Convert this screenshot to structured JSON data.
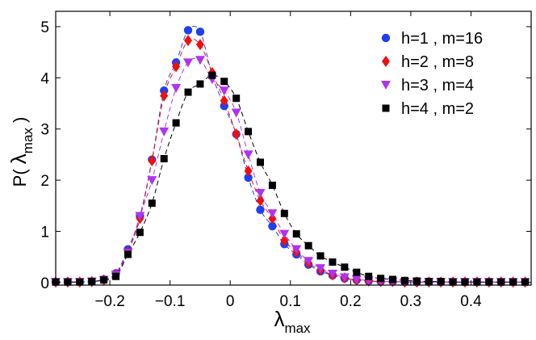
{
  "chart_data": {
    "type": "scatter",
    "title": "",
    "xlabel": {
      "base": "λ",
      "sub": "max"
    },
    "ylabel": {
      "pre": "P( ",
      "base": "λ",
      "sub": "max",
      "post": " )"
    },
    "xlim": [
      -0.29,
      0.5
    ],
    "ylim": [
      -0.05,
      5.3
    ],
    "xticks": [
      -0.2,
      -0.1,
      0,
      0.1,
      0.2,
      0.3,
      0.4
    ],
    "xtick_labels": [
      "−0.2",
      "−0.1",
      "0",
      "0.1",
      "0.2",
      "0.3",
      "0.4"
    ],
    "yticks": [
      0,
      1,
      2,
      3,
      4,
      5
    ],
    "ytick_labels": [
      "0",
      "1",
      "2",
      "3",
      "4",
      "5"
    ],
    "legend_position": "top-right",
    "x": [
      -0.29,
      -0.27,
      -0.25,
      -0.23,
      -0.21,
      -0.19,
      -0.17,
      -0.15,
      -0.13,
      -0.11,
      -0.09,
      -0.07,
      -0.05,
      -0.03,
      -0.01,
      0.01,
      0.03,
      0.05,
      0.07,
      0.09,
      0.11,
      0.13,
      0.15,
      0.17,
      0.19,
      0.21,
      0.23,
      0.25,
      0.27,
      0.29,
      0.31,
      0.33,
      0.35,
      0.37,
      0.39,
      0.41,
      0.43,
      0.45,
      0.47,
      0.49
    ],
    "series": [
      {
        "name": "h=1 , m=16",
        "color": "#1f3ff0",
        "marker": "circle",
        "values": [
          0.01,
          0.01,
          0.01,
          0.02,
          0.06,
          0.18,
          0.65,
          1.3,
          2.4,
          3.75,
          4.3,
          4.93,
          4.9,
          4.05,
          3.45,
          2.9,
          2.05,
          1.42,
          1.1,
          0.75,
          0.55,
          0.35,
          0.22,
          0.14,
          0.08,
          0.05,
          0.03,
          0.02,
          0.02,
          0.01,
          0.01,
          0.01,
          0.01,
          0.01,
          0.01,
          0.01,
          0.01,
          0.01,
          0.01,
          0.01
        ]
      },
      {
        "name": "h=2 , m=8",
        "color": "#ee0f0f",
        "marker": "diamond",
        "values": [
          0.01,
          0.01,
          0.01,
          0.02,
          0.05,
          0.16,
          0.6,
          1.25,
          2.38,
          3.65,
          4.22,
          4.73,
          4.65,
          4.1,
          3.55,
          2.9,
          2.18,
          1.6,
          1.25,
          0.82,
          0.6,
          0.38,
          0.25,
          0.15,
          0.09,
          0.05,
          0.03,
          0.02,
          0.02,
          0.01,
          0.01,
          0.01,
          0.01,
          0.01,
          0.01,
          0.01,
          0.01,
          0.01,
          0.01,
          0.01
        ]
      },
      {
        "name": "h=3 , m=4",
        "color": "#b033ee",
        "marker": "triangle-down",
        "values": [
          0.01,
          0.01,
          0.01,
          0.02,
          0.05,
          0.15,
          0.58,
          1.3,
          2.0,
          2.95,
          3.8,
          4.3,
          4.35,
          3.97,
          3.75,
          3.32,
          2.5,
          1.75,
          1.35,
          0.95,
          0.65,
          0.42,
          0.28,
          0.17,
          0.1,
          0.06,
          0.04,
          0.02,
          0.02,
          0.01,
          0.01,
          0.01,
          0.01,
          0.01,
          0.01,
          0.01,
          0.01,
          0.01,
          0.01,
          0.01
        ]
      },
      {
        "name": "h=4 , m=2",
        "color": "#000000",
        "marker": "square",
        "values": [
          0.01,
          0.01,
          0.01,
          0.02,
          0.05,
          0.12,
          0.55,
          0.98,
          1.55,
          2.42,
          3.12,
          3.72,
          3.88,
          4.05,
          3.93,
          3.6,
          2.95,
          2.35,
          1.9,
          1.35,
          0.95,
          0.72,
          0.52,
          0.4,
          0.3,
          0.2,
          0.12,
          0.08,
          0.06,
          0.04,
          0.03,
          0.02,
          0.02,
          0.01,
          0.01,
          0.01,
          0.01,
          0.01,
          0.01,
          0.01
        ]
      }
    ]
  }
}
